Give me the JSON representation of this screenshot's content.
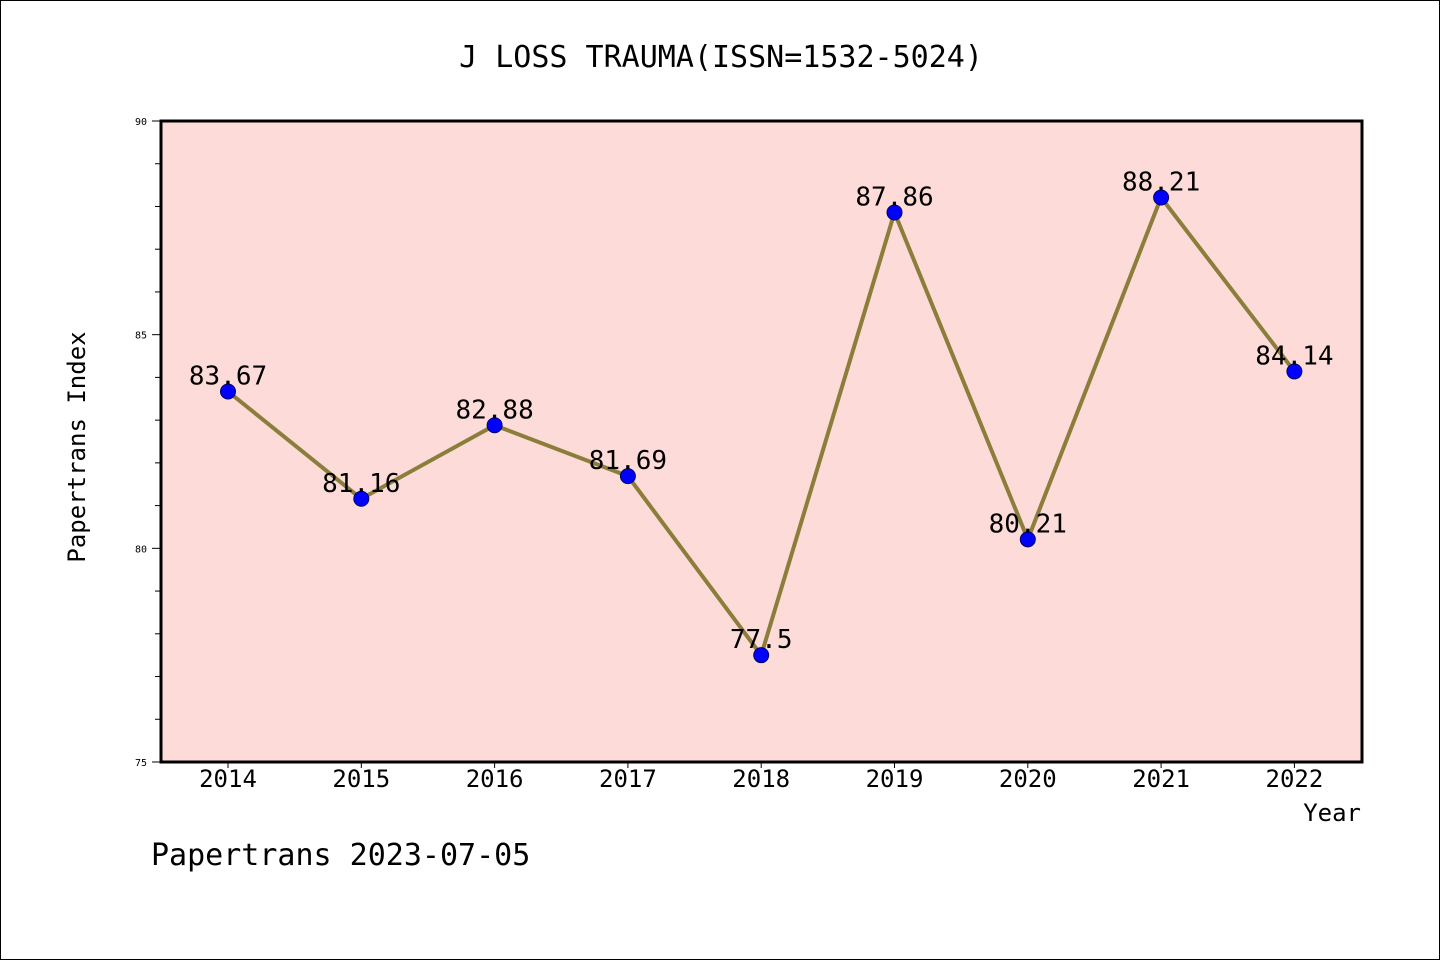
{
  "chart_data": {
    "type": "line",
    "title": "J LOSS TRAUMA(ISSN=1532-5024)",
    "xlabel": "Year",
    "ylabel": "Papertrans Index",
    "categories": [
      "2014",
      "2015",
      "2016",
      "2017",
      "2018",
      "2019",
      "2020",
      "2021",
      "2022"
    ],
    "series": [
      {
        "values": [
          83.67,
          81.16,
          82.88,
          81.69,
          77.5,
          87.86,
          80.21,
          88.21,
          84.14
        ],
        "labels": [
          "83.67",
          "81.16",
          "82.88",
          "81.69",
          "77.5",
          "87.86",
          "80.21",
          "88.21",
          "84.14"
        ]
      }
    ],
    "ylim": [
      75,
      90
    ],
    "y_ticks": [
      "75",
      "80",
      "85",
      "90"
    ],
    "y_tick_values": [
      75,
      80,
      85,
      90
    ],
    "grid": false,
    "colors": {
      "plot_background": "#fddbd8",
      "line": "#8b7d3a",
      "marker": "#0000ff"
    }
  },
  "footer": {
    "watermark": "Papertrans 2023-07-05"
  }
}
